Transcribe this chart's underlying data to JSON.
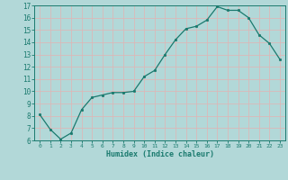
{
  "x": [
    0,
    1,
    2,
    3,
    4,
    5,
    6,
    7,
    8,
    9,
    10,
    11,
    12,
    13,
    14,
    15,
    16,
    17,
    18,
    19,
    20,
    21,
    22,
    23
  ],
  "y": [
    8.1,
    6.9,
    6.1,
    6.6,
    8.5,
    9.5,
    9.7,
    9.9,
    9.9,
    10.0,
    11.2,
    11.7,
    13.0,
    14.2,
    15.1,
    15.3,
    15.8,
    16.9,
    16.6,
    16.6,
    16.0,
    14.6,
    13.9,
    12.6
  ],
  "ylim": [
    6,
    17
  ],
  "yticks": [
    6,
    7,
    8,
    9,
    10,
    11,
    12,
    13,
    14,
    15,
    16,
    17
  ],
  "xticks": [
    0,
    1,
    2,
    3,
    4,
    5,
    6,
    7,
    8,
    9,
    10,
    11,
    12,
    13,
    14,
    15,
    16,
    17,
    18,
    19,
    20,
    21,
    22,
    23
  ],
  "xlabel": "Humidex (Indice chaleur)",
  "line_color": "#1a7a6e",
  "marker_color": "#1a7a6e",
  "bg_color": "#b2d8d8",
  "grid_color": "#dbb8b8",
  "spine_color": "#1a7a6e"
}
